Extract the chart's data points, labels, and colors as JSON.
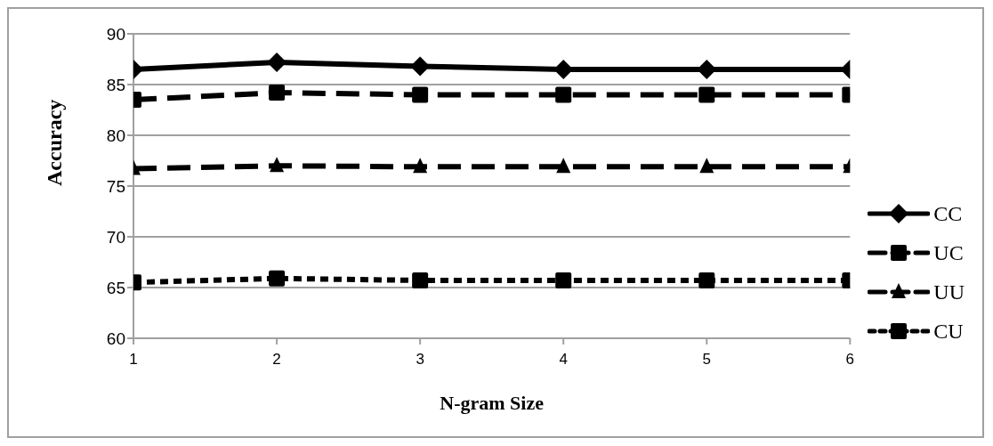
{
  "chart_data": {
    "type": "line",
    "xlabel": "N-gram Size",
    "ylabel": "Accuracy",
    "categories": [
      "1",
      "2",
      "3",
      "4",
      "5",
      "6"
    ],
    "ylim": [
      60,
      90
    ],
    "yticks": [
      60,
      65,
      70,
      75,
      80,
      85,
      90
    ],
    "grid": "y",
    "legend": "right",
    "series": [
      {
        "name": "CC",
        "color": "#000000",
        "marker": "diamond",
        "line_style": "solid",
        "values": [
          86.5,
          87.2,
          86.8,
          86.5,
          86.5,
          86.5
        ]
      },
      {
        "name": "UC",
        "color": "#000000",
        "marker": "square",
        "line_style": "dashed",
        "values": [
          83.5,
          84.2,
          84.0,
          84.0,
          84.0,
          84.0
        ]
      },
      {
        "name": "UU",
        "color": "#000000",
        "marker": "triangle",
        "line_style": "dashed",
        "values": [
          76.7,
          77.0,
          76.9,
          76.9,
          76.9,
          76.9
        ]
      },
      {
        "name": "CU",
        "color": "#000000",
        "marker": "square",
        "line_style": "dotted",
        "values": [
          65.5,
          65.9,
          65.7,
          65.7,
          65.7,
          65.7
        ]
      }
    ]
  }
}
